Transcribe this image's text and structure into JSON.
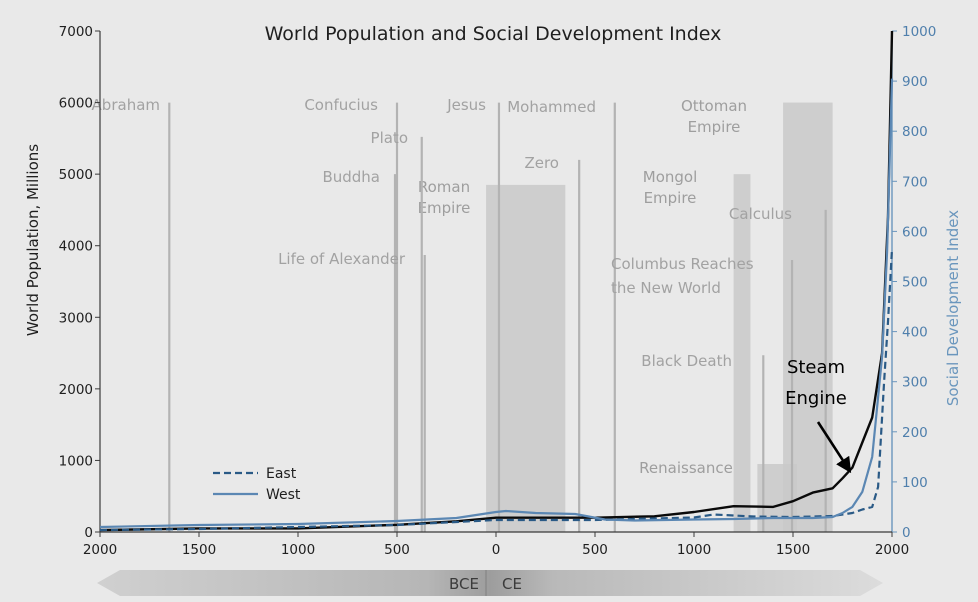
{
  "chart_data": {
    "type": "line",
    "title": "World Population and Social Development Index",
    "ylabel_left": "World Population, Millions",
    "ylabel_right": "Social Development Index",
    "x_range": [
      -2000,
      2000
    ],
    "ylim_left": [
      0,
      7000
    ],
    "ylim_right": [
      0,
      1000
    ],
    "x_ticks": [
      {
        "value": -2000,
        "label": "2000"
      },
      {
        "value": -1500,
        "label": "1500"
      },
      {
        "value": -1000,
        "label": "1000"
      },
      {
        "value": -500,
        "label": "500"
      },
      {
        "value": 0,
        "label": "0"
      },
      {
        "value": 500,
        "label": "500"
      },
      {
        "value": 1000,
        "label": "1000"
      },
      {
        "value": 1500,
        "label": "1500"
      },
      {
        "value": 2000,
        "label": "2000"
      }
    ],
    "y_ticks_left": [
      {
        "value": 0,
        "label": "0"
      },
      {
        "value": 1000,
        "label": "1000"
      },
      {
        "value": 2000,
        "label": "2000"
      },
      {
        "value": 3000,
        "label": "3000"
      },
      {
        "value": 4000,
        "label": "4000"
      },
      {
        "value": 5000,
        "label": "5000"
      },
      {
        "value": 6000,
        "label": "6000"
      },
      {
        "value": 7000,
        "label": "7000"
      }
    ],
    "y_ticks_right": [
      {
        "value": 0,
        "label": "0"
      },
      {
        "value": 100,
        "label": "100"
      },
      {
        "value": 200,
        "label": "200"
      },
      {
        "value": 300,
        "label": "300"
      },
      {
        "value": 400,
        "label": "400"
      },
      {
        "value": 500,
        "label": "500"
      },
      {
        "value": 600,
        "label": "600"
      },
      {
        "value": 700,
        "label": "700"
      },
      {
        "value": 800,
        "label": "800"
      },
      {
        "value": 900,
        "label": "900"
      },
      {
        "value": 1000,
        "label": "1000"
      }
    ],
    "era_bar": {
      "left": "BCE",
      "right": "CE"
    },
    "series": [
      {
        "name": "World Population",
        "axis": "left",
        "style": "solid",
        "color": "#0a0a0a",
        "x": [
          -2000,
          -1500,
          -1000,
          -500,
          -200,
          0,
          200,
          500,
          800,
          1000,
          1200,
          1400,
          1500,
          1600,
          1700,
          1750,
          1800,
          1850,
          1900,
          1950,
          1980,
          2000
        ],
        "y": [
          27,
          50,
          50,
          100,
          150,
          200,
          200,
          200,
          220,
          280,
          360,
          350,
          430,
          550,
          610,
          750,
          900,
          1250,
          1600,
          2500,
          4400,
          7000
        ]
      },
      {
        "name": "East",
        "axis": "right",
        "style": "dashed",
        "color": "#2a5a86",
        "show_in_legend": true,
        "x": [
          -2000,
          -1500,
          -1000,
          -500,
          0,
          500,
          1000,
          1100,
          1300,
          1500,
          1700,
          1800,
          1850,
          1900,
          1930,
          1960,
          1980,
          2000
        ],
        "y": [
          4,
          6,
          10,
          14,
          24,
          24,
          29,
          35,
          31,
          30,
          32,
          38,
          45,
          50,
          90,
          300,
          420,
          565
        ]
      },
      {
        "name": "West",
        "axis": "right",
        "style": "solid",
        "color": "#5b87b3",
        "show_in_legend": true,
        "x": [
          -2000,
          -1500,
          -1000,
          -500,
          -200,
          0,
          50,
          200,
          400,
          550,
          700,
          1000,
          1200,
          1400,
          1600,
          1700,
          1750,
          1800,
          1850,
          1900,
          1950,
          1975,
          2000
        ],
        "y": [
          10,
          14,
          16,
          22,
          28,
          40,
          42,
          38,
          36,
          25,
          23,
          25,
          26,
          28,
          28,
          30,
          38,
          50,
          80,
          150,
          350,
          560,
          905
        ]
      }
    ],
    "events": [
      {
        "label": "Abraham",
        "year": -1650,
        "top": 6000
      },
      {
        "label": "Confucius",
        "year": -500,
        "top": 6000
      },
      {
        "label": "Plato",
        "year": -375,
        "top": 5520
      },
      {
        "label": "Buddha",
        "year": -510,
        "top": 5000
      },
      {
        "label": "Life of Alexander",
        "year": -360,
        "top": 3870
      },
      {
        "label": "Jesus",
        "year": 15,
        "top": 6000
      },
      {
        "label": "Mohammed",
        "year": 600,
        "top": 6000
      },
      {
        "label": "Zero",
        "year": 420,
        "top": 5200
      },
      {
        "label": "Black Death",
        "year": 1350,
        "top": 2470
      },
      {
        "label": "Columbus Reaches",
        "label2": "the New World",
        "year": 1495,
        "top": 3800
      },
      {
        "label": "Calculus",
        "year": 1665,
        "top": 4500
      }
    ],
    "periods": [
      {
        "label": "Roman",
        "label2": "Empire",
        "start": -50,
        "end": 350,
        "top": 4850
      },
      {
        "label": "Mongol",
        "label2": "Empire",
        "start": 1200,
        "end": 1285,
        "top": 5000
      },
      {
        "label": "Ottoman",
        "label2": "Empire",
        "start": 1450,
        "end": 1700,
        "top": 6000
      },
      {
        "label": "Renaissance",
        "start": 1320,
        "end": 1520,
        "top": 950
      }
    ],
    "annotation": {
      "line1": "Steam",
      "line2": "Engine",
      "year": 1775,
      "value": 720
    }
  }
}
